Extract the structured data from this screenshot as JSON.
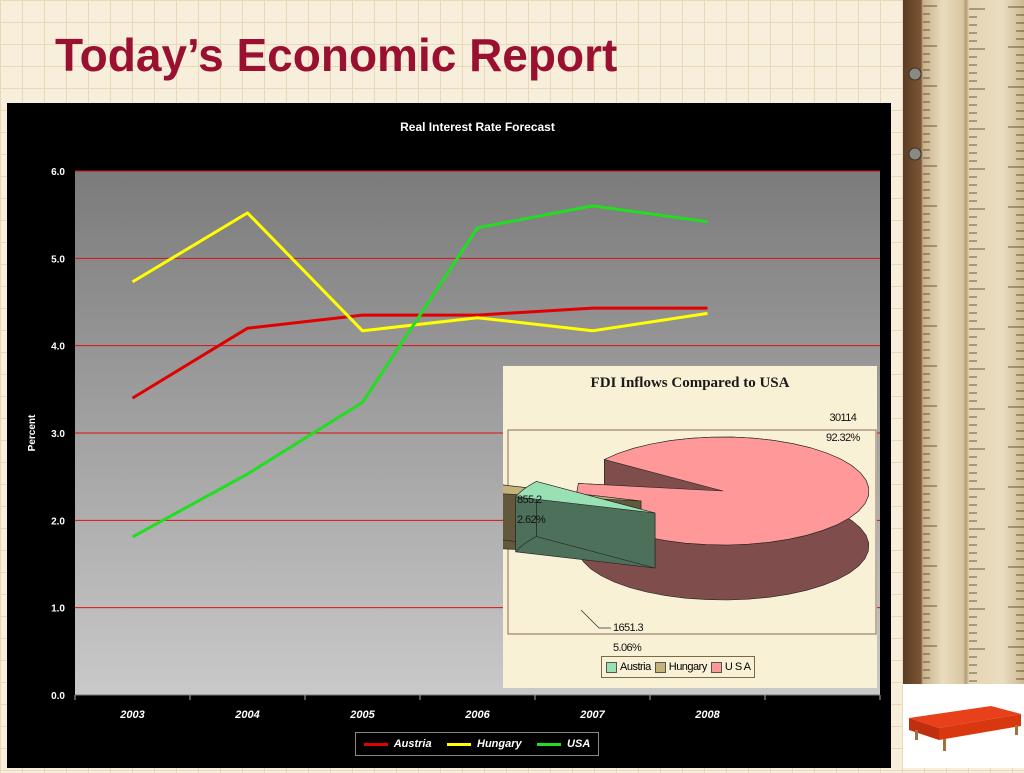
{
  "slide": {
    "title": "Today’s Economic Report"
  },
  "chart_data": [
    {
      "type": "line",
      "title": "Real Interest Rate Forecast",
      "xlabel": "",
      "ylabel": "Percent",
      "categories": [
        "2003",
        "2004",
        "2005",
        "2006",
        "2007",
        "2008"
      ],
      "ylim": [
        0,
        6
      ],
      "yticks": [
        "0.0",
        "1.0",
        "2.0",
        "3.0",
        "4.0",
        "5.0",
        "6.0"
      ],
      "grid": true,
      "legend": "bottom",
      "series": [
        {
          "name": "Austria",
          "color": "#e00000",
          "values": [
            3.4,
            4.2,
            4.35,
            4.35,
            4.43,
            4.43
          ]
        },
        {
          "name": "Hungary",
          "color": "#ffff00",
          "values": [
            4.73,
            5.52,
            4.17,
            4.32,
            4.17,
            4.37
          ]
        },
        {
          "name": "USA",
          "color": "#22dd22",
          "values": [
            1.81,
            2.53,
            3.35,
            5.35,
            5.6,
            5.42
          ]
        }
      ]
    },
    {
      "type": "pie",
      "title": "FDI Inflows Compared to USA",
      "legend": "bottom",
      "slices": [
        {
          "name": "Austria",
          "value": 1651.3,
          "percent": "5.06%",
          "value_label": "1651.3",
          "color": "#99e0b4"
        },
        {
          "name": "Hungary",
          "value": 855.2,
          "percent": "2.62%",
          "value_label": "855.2",
          "color": "#c4b27a"
        },
        {
          "name": "U S A",
          "value": 30114,
          "percent": "92.32%",
          "value_label": "30114",
          "color": "#ff9999"
        }
      ]
    }
  ]
}
